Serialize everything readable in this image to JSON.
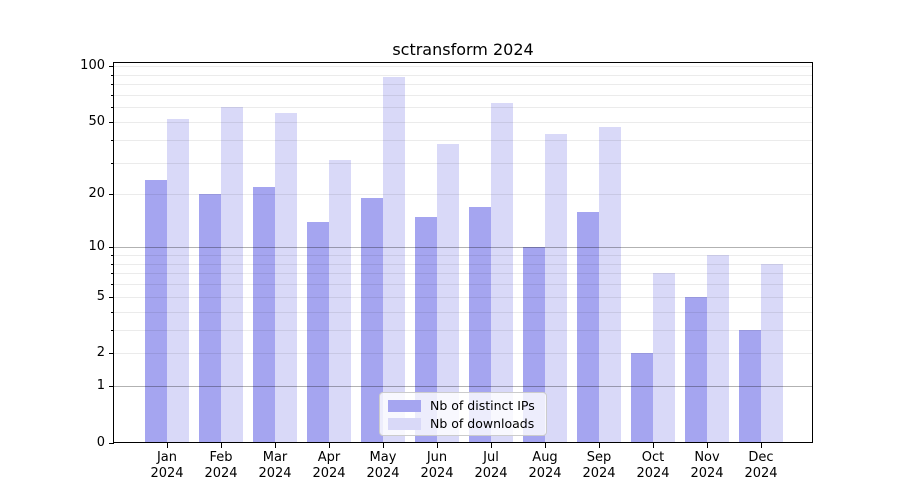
{
  "chart_data": {
    "type": "bar",
    "title": "sctransform 2024",
    "months": [
      "Jan",
      "Feb",
      "Mar",
      "Apr",
      "May",
      "Jun",
      "Jul",
      "Aug",
      "Sep",
      "Oct",
      "Nov",
      "Dec"
    ],
    "year": "2024",
    "series": [
      {
        "name": "Nb of distinct IPs",
        "color": "#a5a5f0",
        "values": [
          24,
          20,
          22,
          14,
          19,
          15,
          17,
          10,
          16,
          2,
          5,
          3
        ]
      },
      {
        "name": "Nb of downloads",
        "color": "#d9d9f8",
        "values": [
          52,
          60,
          56,
          31,
          87,
          38,
          63,
          43,
          47,
          7,
          9,
          8
        ]
      }
    ],
    "xlabel": "",
    "ylabel": "",
    "yscale": "log1p",
    "ylim": [
      0,
      104
    ],
    "y_tick_labels": [
      0,
      1,
      2,
      5,
      10,
      20,
      50,
      100
    ],
    "y_minor_gridlines": [
      2,
      3,
      4,
      5,
      6,
      7,
      8,
      9,
      20,
      30,
      40,
      50,
      60,
      70,
      80,
      90,
      100
    ],
    "y_major_gridlines": [
      1,
      10
    ],
    "grid": true,
    "legend": {
      "position": "lower center inside",
      "labels": [
        "Nb of distinct IPs",
        "Nb of downloads"
      ]
    }
  }
}
